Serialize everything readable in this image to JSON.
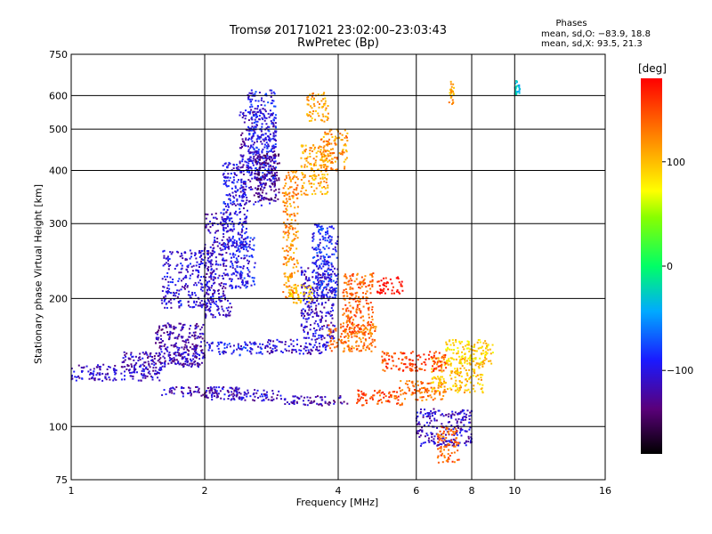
{
  "title": "Tromsø 20171021 23:02:00–23:03:43",
  "subtitle": "RwPretec (Bp)",
  "phase_stats": {
    "header": "Phases",
    "line_o": "mean, sd,O: −83.9, 18.8",
    "line_x": "mean, sd,X:  93.5, 21.3"
  },
  "chart_data": {
    "type": "scatter",
    "title": "Tromsø 20171021 23:02:00–23:03:43",
    "subtitle": "RwPretec (Bp)",
    "xlabel": "Frequency [MHz]",
    "ylabel": "Stationary phase Virtual Height [km]",
    "x_scale": "log",
    "y_scale": "log",
    "xlim": [
      1,
      16
    ],
    "ylim": [
      75,
      750
    ],
    "x_ticks": [
      "1",
      "2",
      "4",
      "6",
      "8",
      "10",
      "16"
    ],
    "x_tick_values": [
      1,
      2,
      4,
      6,
      8,
      10,
      16
    ],
    "y_ticks": [
      "75",
      "100",
      "200",
      "300",
      "400",
      "500",
      "600",
      "750"
    ],
    "y_tick_values": [
      75,
      100,
      200,
      300,
      400,
      500,
      600,
      750
    ],
    "grid": true,
    "colorbar": {
      "label": "[deg]",
      "range": [
        -180,
        180
      ],
      "ticks": [
        "100",
        "0",
        "−100"
      ],
      "tick_values": [
        100,
        0,
        -100
      ]
    },
    "series_clusters": [
      {
        "x": [
          1.0,
          1.6
        ],
        "y": [
          128,
          140
        ],
        "phase": -110
      },
      {
        "x": [
          1.3,
          2.0
        ],
        "y": [
          138,
          150
        ],
        "phase": -115
      },
      {
        "x": [
          1.55,
          2.0
        ],
        "y": [
          140,
          175
        ],
        "phase": -120
      },
      {
        "x": [
          1.6,
          2.1
        ],
        "y": [
          190,
          260
        ],
        "phase": -105
      },
      {
        "x": [
          2.0,
          2.7
        ],
        "y": [
          147,
          158
        ],
        "phase": -95
      },
      {
        "x": [
          1.6,
          2.4
        ],
        "y": [
          117,
          124
        ],
        "phase": -115
      },
      {
        "x": [
          2.0,
          3.0
        ],
        "y": [
          115,
          122
        ],
        "phase": -110
      },
      {
        "x": [
          3.0,
          4.2
        ],
        "y": [
          112,
          118
        ],
        "phase": -120
      },
      {
        "x": [
          2.7,
          3.8
        ],
        "y": [
          148,
          160
        ],
        "phase": -110
      },
      {
        "x": [
          2.0,
          2.3
        ],
        "y": [
          180,
          320
        ],
        "phase": -110
      },
      {
        "x": [
          2.2,
          2.5
        ],
        "y": [
          260,
          420
        ],
        "phase": -100
      },
      {
        "x": [
          2.4,
          2.9
        ],
        "y": [
          330,
          560
        ],
        "phase": -110
      },
      {
        "x": [
          2.5,
          2.9
        ],
        "y": [
          380,
          620
        ],
        "phase": -95
      },
      {
        "x": [
          2.3,
          2.6
        ],
        "y": [
          210,
          280
        ],
        "phase": -95
      },
      {
        "x": [
          2.6,
          2.95
        ],
        "y": [
          340,
          440
        ],
        "phase": -135
      },
      {
        "x": [
          3.0,
          3.25
        ],
        "y": [
          200,
          400
        ],
        "phase": 120
      },
      {
        "x": [
          3.3,
          3.8
        ],
        "y": [
          350,
          460
        ],
        "phase": 110
      },
      {
        "x": [
          3.65,
          4.2
        ],
        "y": [
          400,
          500
        ],
        "phase": 120
      },
      {
        "x": [
          3.4,
          3.8
        ],
        "y": [
          520,
          610
        ],
        "phase": 110
      },
      {
        "x": [
          3.3,
          3.95
        ],
        "y": [
          160,
          240
        ],
        "phase": -110
      },
      {
        "x": [
          3.5,
          4.0
        ],
        "y": [
          200,
          300
        ],
        "phase": -90
      },
      {
        "x": [
          3.1,
          3.5
        ],
        "y": [
          195,
          215
        ],
        "phase": 90
      },
      {
        "x": [
          4.1,
          4.8
        ],
        "y": [
          165,
          230
        ],
        "phase": 140
      },
      {
        "x": [
          3.8,
          4.9
        ],
        "y": [
          150,
          175
        ],
        "phase": 135
      },
      {
        "x": [
          4.4,
          5.6
        ],
        "y": [
          112,
          122
        ],
        "phase": 150
      },
      {
        "x": [
          5.5,
          7.0
        ],
        "y": [
          115,
          128
        ],
        "phase": 135
      },
      {
        "x": [
          6.5,
          8.5
        ],
        "y": [
          120,
          145
        ],
        "phase": 100
      },
      {
        "x": [
          7.0,
          9.0
        ],
        "y": [
          140,
          160
        ],
        "phase": 90
      },
      {
        "x": [
          5.0,
          7.0
        ],
        "y": [
          135,
          150
        ],
        "phase": 150
      },
      {
        "x": [
          6.0,
          8.0
        ],
        "y": [
          90,
          110
        ],
        "phase": -110
      },
      {
        "x": [
          6.7,
          7.5
        ],
        "y": [
          82,
          100
        ],
        "phase": 140
      },
      {
        "x": [
          4.9,
          5.6
        ],
        "y": [
          205,
          225
        ],
        "phase": 175
      },
      {
        "x": [
          7.1,
          7.3
        ],
        "y": [
          570,
          650
        ],
        "phase": 110
      },
      {
        "x": [
          10.0,
          10.3
        ],
        "y": [
          600,
          650
        ],
        "phase": -30
      }
    ]
  }
}
